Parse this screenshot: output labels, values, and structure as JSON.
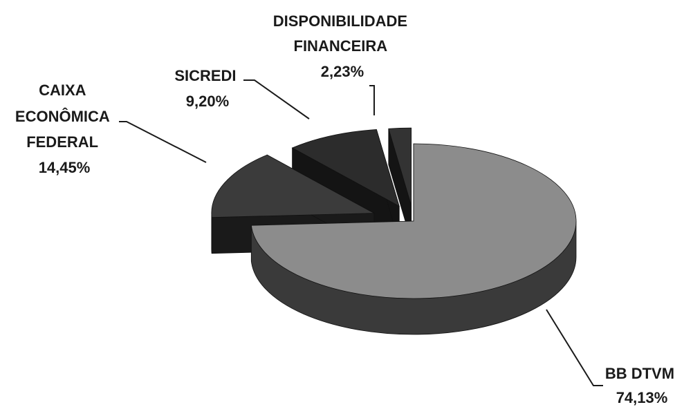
{
  "chart_data": {
    "type": "pie",
    "style": "3d-exploded",
    "slices": [
      {
        "name": "BB DTVM",
        "value": 74.13,
        "label": [
          "BB DTVM"
        ],
        "pct_label": "74,13%",
        "color": "#8c8c8c",
        "side_color": "#3a3a3a"
      },
      {
        "name": "CAIXA ECONÔMICA FEDERAL",
        "value": 14.45,
        "label": [
          "CAIXA",
          "ECONÔMICA",
          "FEDERAL"
        ],
        "pct_label": "14,45%",
        "color": "#3b3b3b",
        "side_color": "#1a1a1a"
      },
      {
        "name": "SICREDI",
        "value": 9.2,
        "label": [
          "SICREDI"
        ],
        "pct_label": "9,20%",
        "color": "#2c2c2c",
        "side_color": "#141414"
      },
      {
        "name": "DISPONIBILIDADE FINANCEIRA",
        "value": 2.23,
        "label": [
          "DISPONIBILIDADE",
          "FINANCEIRA"
        ],
        "pct_label": "2,23%",
        "color": "#333333",
        "side_color": "#141414"
      }
    ]
  }
}
